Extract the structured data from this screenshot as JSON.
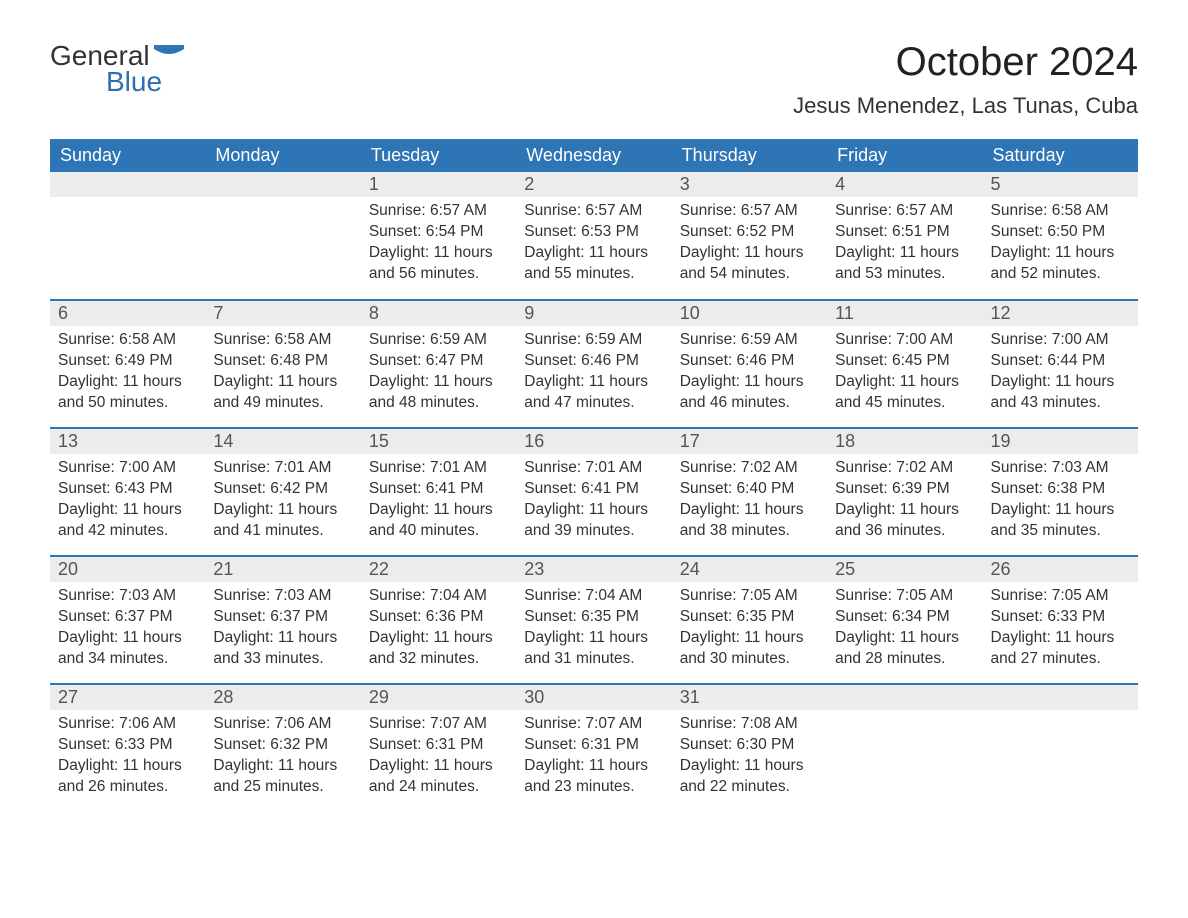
{
  "brand": {
    "word1": "General",
    "word2": "Blue",
    "word1_color": "#333333",
    "word2_color": "#2c6fb5",
    "flag_color": "#2e75b6"
  },
  "title": "October 2024",
  "location": "Jesus Menendez, Las Tunas, Cuba",
  "colors": {
    "header_bg": "#2e75b6",
    "header_text": "#ffffff",
    "daynum_bg": "#ececec",
    "daynum_text": "#555555",
    "body_text": "#333333",
    "row_border": "#2e75b6",
    "page_bg": "#ffffff"
  },
  "day_headers": [
    "Sunday",
    "Monday",
    "Tuesday",
    "Wednesday",
    "Thursday",
    "Friday",
    "Saturday"
  ],
  "weeks": [
    [
      null,
      null,
      {
        "n": "1",
        "sr": "Sunrise: 6:57 AM",
        "ss": "Sunset: 6:54 PM",
        "d1": "Daylight: 11 hours",
        "d2": "and 56 minutes."
      },
      {
        "n": "2",
        "sr": "Sunrise: 6:57 AM",
        "ss": "Sunset: 6:53 PM",
        "d1": "Daylight: 11 hours",
        "d2": "and 55 minutes."
      },
      {
        "n": "3",
        "sr": "Sunrise: 6:57 AM",
        "ss": "Sunset: 6:52 PM",
        "d1": "Daylight: 11 hours",
        "d2": "and 54 minutes."
      },
      {
        "n": "4",
        "sr": "Sunrise: 6:57 AM",
        "ss": "Sunset: 6:51 PM",
        "d1": "Daylight: 11 hours",
        "d2": "and 53 minutes."
      },
      {
        "n": "5",
        "sr": "Sunrise: 6:58 AM",
        "ss": "Sunset: 6:50 PM",
        "d1": "Daylight: 11 hours",
        "d2": "and 52 minutes."
      }
    ],
    [
      {
        "n": "6",
        "sr": "Sunrise: 6:58 AM",
        "ss": "Sunset: 6:49 PM",
        "d1": "Daylight: 11 hours",
        "d2": "and 50 minutes."
      },
      {
        "n": "7",
        "sr": "Sunrise: 6:58 AM",
        "ss": "Sunset: 6:48 PM",
        "d1": "Daylight: 11 hours",
        "d2": "and 49 minutes."
      },
      {
        "n": "8",
        "sr": "Sunrise: 6:59 AM",
        "ss": "Sunset: 6:47 PM",
        "d1": "Daylight: 11 hours",
        "d2": "and 48 minutes."
      },
      {
        "n": "9",
        "sr": "Sunrise: 6:59 AM",
        "ss": "Sunset: 6:46 PM",
        "d1": "Daylight: 11 hours",
        "d2": "and 47 minutes."
      },
      {
        "n": "10",
        "sr": "Sunrise: 6:59 AM",
        "ss": "Sunset: 6:46 PM",
        "d1": "Daylight: 11 hours",
        "d2": "and 46 minutes."
      },
      {
        "n": "11",
        "sr": "Sunrise: 7:00 AM",
        "ss": "Sunset: 6:45 PM",
        "d1": "Daylight: 11 hours",
        "d2": "and 45 minutes."
      },
      {
        "n": "12",
        "sr": "Sunrise: 7:00 AM",
        "ss": "Sunset: 6:44 PM",
        "d1": "Daylight: 11 hours",
        "d2": "and 43 minutes."
      }
    ],
    [
      {
        "n": "13",
        "sr": "Sunrise: 7:00 AM",
        "ss": "Sunset: 6:43 PM",
        "d1": "Daylight: 11 hours",
        "d2": "and 42 minutes."
      },
      {
        "n": "14",
        "sr": "Sunrise: 7:01 AM",
        "ss": "Sunset: 6:42 PM",
        "d1": "Daylight: 11 hours",
        "d2": "and 41 minutes."
      },
      {
        "n": "15",
        "sr": "Sunrise: 7:01 AM",
        "ss": "Sunset: 6:41 PM",
        "d1": "Daylight: 11 hours",
        "d2": "and 40 minutes."
      },
      {
        "n": "16",
        "sr": "Sunrise: 7:01 AM",
        "ss": "Sunset: 6:41 PM",
        "d1": "Daylight: 11 hours",
        "d2": "and 39 minutes."
      },
      {
        "n": "17",
        "sr": "Sunrise: 7:02 AM",
        "ss": "Sunset: 6:40 PM",
        "d1": "Daylight: 11 hours",
        "d2": "and 38 minutes."
      },
      {
        "n": "18",
        "sr": "Sunrise: 7:02 AM",
        "ss": "Sunset: 6:39 PM",
        "d1": "Daylight: 11 hours",
        "d2": "and 36 minutes."
      },
      {
        "n": "19",
        "sr": "Sunrise: 7:03 AM",
        "ss": "Sunset: 6:38 PM",
        "d1": "Daylight: 11 hours",
        "d2": "and 35 minutes."
      }
    ],
    [
      {
        "n": "20",
        "sr": "Sunrise: 7:03 AM",
        "ss": "Sunset: 6:37 PM",
        "d1": "Daylight: 11 hours",
        "d2": "and 34 minutes."
      },
      {
        "n": "21",
        "sr": "Sunrise: 7:03 AM",
        "ss": "Sunset: 6:37 PM",
        "d1": "Daylight: 11 hours",
        "d2": "and 33 minutes."
      },
      {
        "n": "22",
        "sr": "Sunrise: 7:04 AM",
        "ss": "Sunset: 6:36 PM",
        "d1": "Daylight: 11 hours",
        "d2": "and 32 minutes."
      },
      {
        "n": "23",
        "sr": "Sunrise: 7:04 AM",
        "ss": "Sunset: 6:35 PM",
        "d1": "Daylight: 11 hours",
        "d2": "and 31 minutes."
      },
      {
        "n": "24",
        "sr": "Sunrise: 7:05 AM",
        "ss": "Sunset: 6:35 PM",
        "d1": "Daylight: 11 hours",
        "d2": "and 30 minutes."
      },
      {
        "n": "25",
        "sr": "Sunrise: 7:05 AM",
        "ss": "Sunset: 6:34 PM",
        "d1": "Daylight: 11 hours",
        "d2": "and 28 minutes."
      },
      {
        "n": "26",
        "sr": "Sunrise: 7:05 AM",
        "ss": "Sunset: 6:33 PM",
        "d1": "Daylight: 11 hours",
        "d2": "and 27 minutes."
      }
    ],
    [
      {
        "n": "27",
        "sr": "Sunrise: 7:06 AM",
        "ss": "Sunset: 6:33 PM",
        "d1": "Daylight: 11 hours",
        "d2": "and 26 minutes."
      },
      {
        "n": "28",
        "sr": "Sunrise: 7:06 AM",
        "ss": "Sunset: 6:32 PM",
        "d1": "Daylight: 11 hours",
        "d2": "and 25 minutes."
      },
      {
        "n": "29",
        "sr": "Sunrise: 7:07 AM",
        "ss": "Sunset: 6:31 PM",
        "d1": "Daylight: 11 hours",
        "d2": "and 24 minutes."
      },
      {
        "n": "30",
        "sr": "Sunrise: 7:07 AM",
        "ss": "Sunset: 6:31 PM",
        "d1": "Daylight: 11 hours",
        "d2": "and 23 minutes."
      },
      {
        "n": "31",
        "sr": "Sunrise: 7:08 AM",
        "ss": "Sunset: 6:30 PM",
        "d1": "Daylight: 11 hours",
        "d2": "and 22 minutes."
      },
      null,
      null
    ]
  ]
}
